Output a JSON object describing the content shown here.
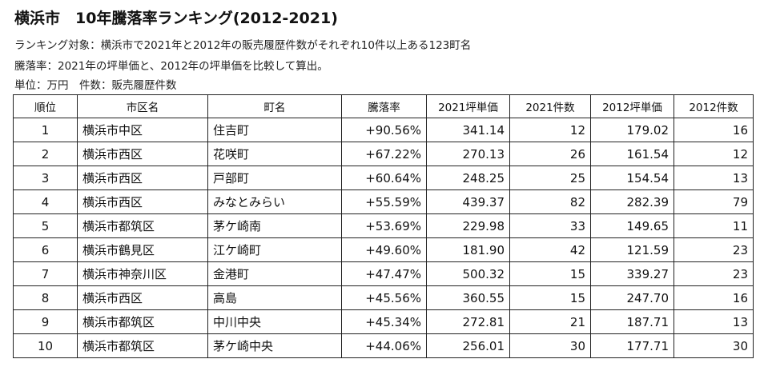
{
  "title": "横浜市　10年騰落率ランキング(2012-2021)",
  "notes": {
    "target": "ランキング対象：横浜市で2021年と2012年の販売履歴件数がそれぞれ10件以上ある123町名",
    "definition": "騰落率：2021年の坪単価と、2012年の坪単価を比較して算出。",
    "units": "単位：万円　件数：販売履歴件数"
  },
  "table": {
    "headers": [
      "順位",
      "市区名",
      "町名",
      "騰落率",
      "2021坪単価",
      "2021件数",
      "2012坪単価",
      "2012件数"
    ],
    "rows": [
      [
        "1",
        "横浜市中区",
        "住吉町",
        "+90.56%",
        "341.14",
        "12",
        "179.02",
        "16"
      ],
      [
        "2",
        "横浜市西区",
        "花咲町",
        "+67.22%",
        "270.13",
        "26",
        "161.54",
        "12"
      ],
      [
        "3",
        "横浜市西区",
        "戸部町",
        "+60.64%",
        "248.25",
        "25",
        "154.54",
        "13"
      ],
      [
        "4",
        "横浜市西区",
        "みなとみらい",
        "+55.59%",
        "439.37",
        "82",
        "282.39",
        "79"
      ],
      [
        "5",
        "横浜市都筑区",
        "茅ケ崎南",
        "+53.69%",
        "229.98",
        "33",
        "149.65",
        "11"
      ],
      [
        "6",
        "横浜市鶴見区",
        "江ケ崎町",
        "+49.60%",
        "181.90",
        "42",
        "121.59",
        "23"
      ],
      [
        "7",
        "横浜市神奈川区",
        "金港町",
        "+47.47%",
        "500.32",
        "15",
        "339.27",
        "23"
      ],
      [
        "8",
        "横浜市西区",
        "高島",
        "+45.56%",
        "360.55",
        "15",
        "247.70",
        "16"
      ],
      [
        "9",
        "横浜市都筑区",
        "中川中央",
        "+45.34%",
        "272.81",
        "21",
        "187.71",
        "13"
      ],
      [
        "10",
        "横浜市都筑区",
        "茅ケ崎中央",
        "+44.06%",
        "256.01",
        "30",
        "177.71",
        "30"
      ]
    ]
  }
}
